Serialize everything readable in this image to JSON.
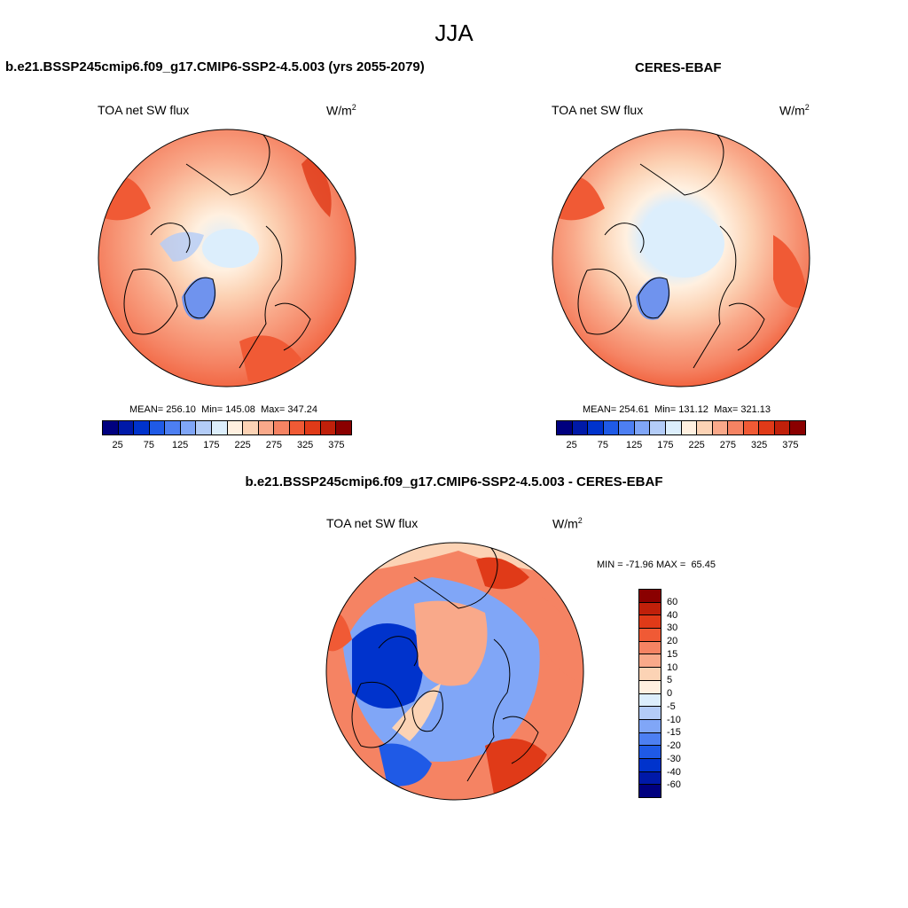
{
  "title": "JJA",
  "panels": [
    {
      "title": "b.e21.BSSP245cmip6.f09_g17.CMIP6-SSP2-4.5.003 (yrs 2055-2079)",
      "variable": "TOA net SW flux",
      "unit": "W/m",
      "unit_sup": "2",
      "stats": {
        "mean": "256.10",
        "min": "145.08",
        "max": "347.24"
      }
    },
    {
      "title": "CERES-EBAF",
      "variable": "TOA net SW flux",
      "unit": "W/m",
      "unit_sup": "2",
      "stats": {
        "mean": "254.61",
        "min": "131.12",
        "max": "321.13"
      }
    },
    {
      "title": "b.e21.BSSP245cmip6.f09_g17.CMIP6-SSP2-4.5.003 - CERES-EBAF",
      "variable": "TOA net SW flux",
      "unit": "W/m",
      "unit_sup": "2",
      "stats": {
        "min": "-71.96",
        "max": "65.45"
      }
    }
  ],
  "labels": {
    "mean": "MEAN=",
    "min": "Min=",
    "max": "Max=",
    "diff_min": "MIN =",
    "diff_max": "MAX ="
  },
  "colorbar_abs": {
    "ticks": [
      "25",
      "75",
      "125",
      "175",
      "225",
      "275",
      "325",
      "375"
    ],
    "colors": [
      "#00007f",
      "#0019a8",
      "#0033cc",
      "#1f5ae6",
      "#4d7ff2",
      "#80a6f7",
      "#b3ccf7",
      "#dceefc",
      "#fff0e0",
      "#fcd3b5",
      "#f9a98a",
      "#f58363",
      "#f05a35",
      "#e03a18",
      "#c0200a",
      "#8a0000"
    ]
  },
  "colorbar_diff": {
    "labels": [
      "60",
      "40",
      "30",
      "20",
      "15",
      "10",
      "5",
      "0",
      "-5",
      "-10",
      "-15",
      "-20",
      "-30",
      "-40",
      "-60"
    ],
    "colors": [
      "#8a0000",
      "#c0200a",
      "#e03a18",
      "#f05a35",
      "#f58363",
      "#f9a98a",
      "#fcd3b5",
      "#fff0e0",
      "#dceefc",
      "#b3ccf7",
      "#80a6f7",
      "#4d7ff2",
      "#1f5ae6",
      "#0033cc",
      "#0019a8",
      "#00007f"
    ]
  }
}
